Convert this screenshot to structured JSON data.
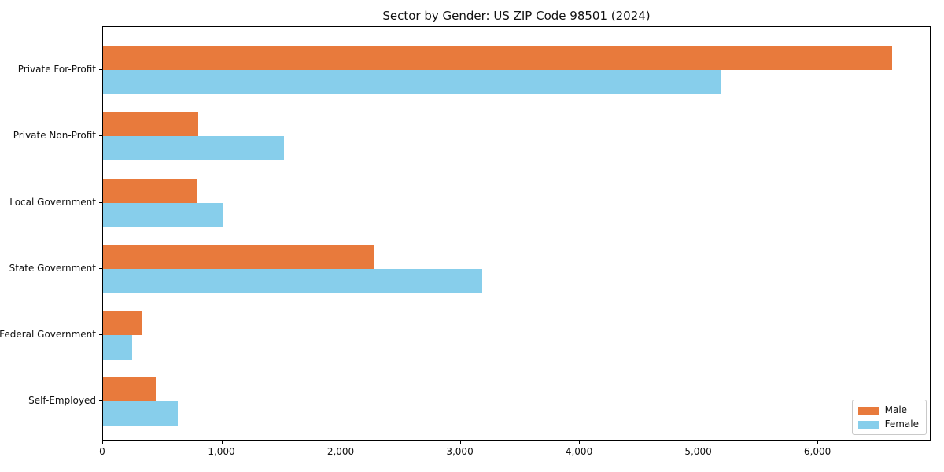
{
  "title": "Sector by Gender: US ZIP Code 98501 (2024)",
  "colors": {
    "male": "#E87A3C",
    "female": "#87CEEB",
    "axis": "#000000",
    "legend_border": "#c9c9c9",
    "text": "#111111",
    "background": "#ffffff"
  },
  "chart_data": {
    "type": "bar",
    "orientation": "horizontal",
    "title": "Sector by Gender: US ZIP Code 98501 (2024)",
    "xlabel": "",
    "ylabel": "",
    "categories": [
      "Private For-Profit",
      "Private Non-Profit",
      "Local Government",
      "State Government",
      "Federal Government",
      "Self-Employed"
    ],
    "series": [
      {
        "name": "Male",
        "color": "#E87A3C",
        "values": [
          6620,
          800,
          790,
          2270,
          330,
          440
        ]
      },
      {
        "name": "Female",
        "color": "#87CEEB",
        "values": [
          5190,
          1520,
          1000,
          3180,
          245,
          630
        ]
      }
    ],
    "xlim": [
      0,
      6950
    ],
    "x_ticks": [
      {
        "value": 0,
        "label": "0"
      },
      {
        "value": 1000,
        "label": "1,000"
      },
      {
        "value": 2000,
        "label": "2,000"
      },
      {
        "value": 3000,
        "label": "3,000"
      },
      {
        "value": 4000,
        "label": "4,000"
      },
      {
        "value": 5000,
        "label": "5,000"
      },
      {
        "value": 6000,
        "label": "6,000"
      }
    ],
    "grid": false,
    "legend_position": "lower right"
  },
  "legend": {
    "items": [
      {
        "label": "Male"
      },
      {
        "label": "Female"
      }
    ]
  }
}
